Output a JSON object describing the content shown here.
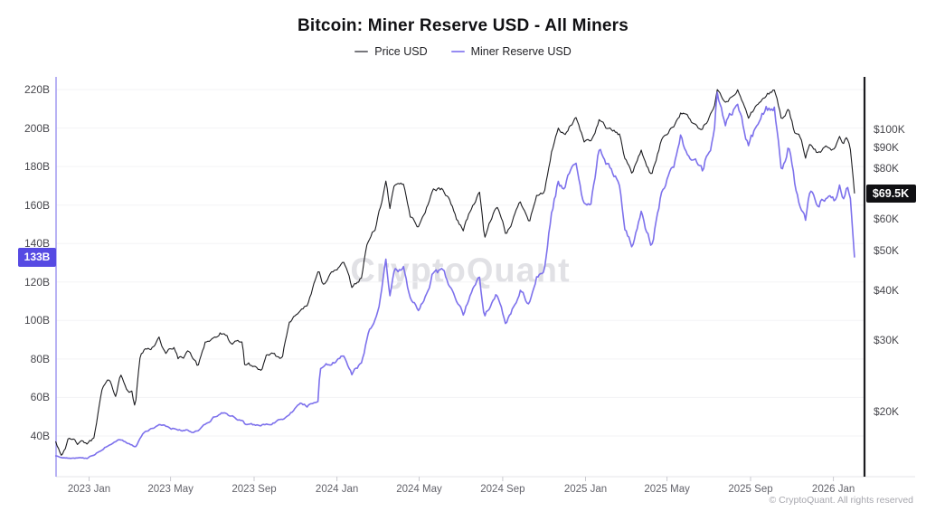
{
  "footer": "© CryptoQuant. All rights reserved",
  "chart_data": {
    "type": "line",
    "title": "Bitcoin: Miner Reserve USD - All Miners",
    "watermark": "CryptoQuant",
    "legend": [
      {
        "label": "Price USD",
        "swatch_color": "#77777c"
      },
      {
        "label": "Miner Reserve USD",
        "swatch_color": "#968bf2"
      }
    ],
    "x_axis": {
      "ticks": [
        [
          "2023-01-01",
          "2023 Jan"
        ],
        [
          "2023-05-01",
          "2023 May"
        ],
        [
          "2023-09-01",
          "2023 Sep"
        ],
        [
          "2024-01-01",
          "2024 Jan"
        ],
        [
          "2024-05-01",
          "2024 May"
        ],
        [
          "2024-09-01",
          "2024 Sep"
        ],
        [
          "2025-01-01",
          "2025 Jan"
        ],
        [
          "2025-05-01",
          "2025 May"
        ],
        [
          "2025-09-01",
          "2025 Sep"
        ],
        [
          "2026-01-01",
          "2026 Jan"
        ]
      ]
    },
    "left_axis": {
      "title": "Miner Reserve USD (billions)",
      "scale": "linear",
      "unit": "B",
      "ticks": [
        [
          40,
          "40B"
        ],
        [
          60,
          "60B"
        ],
        [
          80,
          "80B"
        ],
        [
          100,
          "100B"
        ],
        [
          120,
          "120B"
        ],
        [
          140,
          "140B"
        ],
        [
          160,
          "160B"
        ],
        [
          180,
          "180B"
        ],
        [
          200,
          "200B"
        ],
        [
          220,
          "220B"
        ]
      ],
      "badge": {
        "label": "133B",
        "value": 133,
        "color": "#564ae3"
      },
      "spine_color": "#a79ef2"
    },
    "right_axis": {
      "title": "Price USD",
      "scale": "log",
      "ticks": [
        [
          20000,
          "$20K"
        ],
        [
          30000,
          "$30K"
        ],
        [
          40000,
          "$40K"
        ],
        [
          50000,
          "$50K"
        ],
        [
          60000,
          "$60K"
        ],
        [
          80000,
          "$80K"
        ],
        [
          90000,
          "$90K"
        ],
        [
          100000,
          "$100K"
        ]
      ],
      "badge": {
        "label": "$69.5K",
        "value": 69500,
        "color": "#101013"
      },
      "spine_color": "#1b1b1f"
    },
    "series": [
      {
        "name": "Price USD",
        "axis": "right",
        "color": "#1d1d21",
        "width": 1.1,
        "points": [
          [
            "2022-11-13",
            16900
          ],
          [
            "2022-11-21",
            15800
          ],
          [
            "2022-12-01",
            17100
          ],
          [
            "2022-12-16",
            16600
          ],
          [
            "2022-12-31",
            16550
          ],
          [
            "2023-01-08",
            17000
          ],
          [
            "2023-01-14",
            19900
          ],
          [
            "2023-01-21",
            22800
          ],
          [
            "2023-01-29",
            23700
          ],
          [
            "2023-02-09",
            21800
          ],
          [
            "2023-02-16",
            24600
          ],
          [
            "2023-02-24",
            23200
          ],
          [
            "2023-03-05",
            22400
          ],
          [
            "2023-03-10",
            20200
          ],
          [
            "2023-03-17",
            27400
          ],
          [
            "2023-03-22",
            28300
          ],
          [
            "2023-04-01",
            28400
          ],
          [
            "2023-04-14",
            30700
          ],
          [
            "2023-04-24",
            27600
          ],
          [
            "2023-05-06",
            28900
          ],
          [
            "2023-05-12",
            26800
          ],
          [
            "2023-05-29",
            28100
          ],
          [
            "2023-06-10",
            25700
          ],
          [
            "2023-06-21",
            30000
          ],
          [
            "2023-07-06",
            30600
          ],
          [
            "2023-07-14",
            31300
          ],
          [
            "2023-07-30",
            29300
          ],
          [
            "2023-08-15",
            29200
          ],
          [
            "2023-08-18",
            26100
          ],
          [
            "2023-09-01",
            25800
          ],
          [
            "2023-09-11",
            25200
          ],
          [
            "2023-09-19",
            27200
          ],
          [
            "2023-10-01",
            27000
          ],
          [
            "2023-10-12",
            26800
          ],
          [
            "2023-10-23",
            33100
          ],
          [
            "2023-11-02",
            35400
          ],
          [
            "2023-11-09",
            36700
          ],
          [
            "2023-11-18",
            36500
          ],
          [
            "2023-12-05",
            44000
          ],
          [
            "2023-12-11",
            41300
          ],
          [
            "2023-12-22",
            43900
          ],
          [
            "2024-01-02",
            45000
          ],
          [
            "2024-01-11",
            46600
          ],
          [
            "2024-01-23",
            39900
          ],
          [
            "2024-02-06",
            43100
          ],
          [
            "2024-02-15",
            52300
          ],
          [
            "2024-02-27",
            57000
          ],
          [
            "2024-03-05",
            63800
          ],
          [
            "2024-03-13",
            73100
          ],
          [
            "2024-03-19",
            62800
          ],
          [
            "2024-03-25",
            70900
          ],
          [
            "2024-04-08",
            72100
          ],
          [
            "2024-04-18",
            61300
          ],
          [
            "2024-05-01",
            57500
          ],
          [
            "2024-05-15",
            66300
          ],
          [
            "2024-05-21",
            71400
          ],
          [
            "2024-06-05",
            71100
          ],
          [
            "2024-06-18",
            65100
          ],
          [
            "2024-06-24",
            60300
          ],
          [
            "2024-07-05",
            56600
          ],
          [
            "2024-07-17",
            64100
          ],
          [
            "2024-07-29",
            69600
          ],
          [
            "2024-08-05",
            54000
          ],
          [
            "2024-08-23",
            64100
          ],
          [
            "2024-09-06",
            53900
          ],
          [
            "2024-09-27",
            65800
          ],
          [
            "2024-10-10",
            60300
          ],
          [
            "2024-10-21",
            69000
          ],
          [
            "2024-11-01",
            69500
          ],
          [
            "2024-11-12",
            88000
          ],
          [
            "2024-11-22",
            98900
          ],
          [
            "2024-12-01",
            95900
          ],
          [
            "2024-12-17",
            106100
          ],
          [
            "2024-12-30",
            92600
          ],
          [
            "2025-01-09",
            92500
          ],
          [
            "2025-01-21",
            106100
          ],
          [
            "2025-01-31",
            102100
          ],
          [
            "2025-02-21",
            96100
          ],
          [
            "2025-02-28",
            84300
          ],
          [
            "2025-03-10",
            78500
          ],
          [
            "2025-03-24",
            88000
          ],
          [
            "2025-04-08",
            76300
          ],
          [
            "2025-04-22",
            93400
          ],
          [
            "2025-05-12",
            104100
          ],
          [
            "2025-05-22",
            111700
          ],
          [
            "2025-06-05",
            104700
          ],
          [
            "2025-06-22",
            99000
          ],
          [
            "2025-07-09",
            111300
          ],
          [
            "2025-07-14",
            123100
          ],
          [
            "2025-07-25",
            115000
          ],
          [
            "2025-08-13",
            124400
          ],
          [
            "2025-08-29",
            108000
          ],
          [
            "2025-09-18",
            117500
          ],
          [
            "2025-10-06",
            126200
          ],
          [
            "2025-10-17",
            104600
          ],
          [
            "2025-10-27",
            113000
          ],
          [
            "2025-11-04",
            99500
          ],
          [
            "2025-11-14",
            94000
          ],
          [
            "2025-11-21",
            83000
          ],
          [
            "2025-11-28",
            91000
          ],
          [
            "2025-12-10",
            87000
          ],
          [
            "2025-12-20",
            90000
          ],
          [
            "2026-01-02",
            88000
          ],
          [
            "2026-01-10",
            94000
          ],
          [
            "2026-01-15",
            90500
          ],
          [
            "2026-01-21",
            95500
          ],
          [
            "2026-01-26",
            89000
          ],
          [
            "2026-02-01",
            69500
          ]
        ]
      },
      {
        "name": "Miner Reserve USD",
        "axis": "left",
        "color": "#7d71ec",
        "width": 1.6,
        "points": [
          [
            "2022-11-13",
            29.5
          ],
          [
            "2022-12-01",
            28.5
          ],
          [
            "2022-12-31",
            28.8
          ],
          [
            "2023-01-14",
            31.5
          ],
          [
            "2023-01-29",
            35.5
          ],
          [
            "2023-02-16",
            37.5
          ],
          [
            "2023-03-10",
            34.0
          ],
          [
            "2023-03-22",
            42.0
          ],
          [
            "2023-04-14",
            44.5
          ],
          [
            "2023-05-12",
            43.5
          ],
          [
            "2023-06-10",
            42.5
          ],
          [
            "2023-06-21",
            46.0
          ],
          [
            "2023-07-14",
            52.5
          ],
          [
            "2023-08-15",
            48.0
          ],
          [
            "2023-08-18",
            46.0
          ],
          [
            "2023-09-11",
            45.0
          ],
          [
            "2023-10-01",
            47.5
          ],
          [
            "2023-10-23",
            50.0
          ],
          [
            "2023-11-09",
            56.0
          ],
          [
            "2023-11-18",
            55.5
          ],
          [
            "2023-12-04",
            59.0
          ],
          [
            "2023-12-07",
            76.0
          ],
          [
            "2023-12-22",
            77.5
          ],
          [
            "2024-01-11",
            81.5
          ],
          [
            "2024-01-23",
            72.5
          ],
          [
            "2024-02-06",
            78.0
          ],
          [
            "2024-02-15",
            92.0
          ],
          [
            "2024-02-27",
            101.0
          ],
          [
            "2024-03-05",
            113.0
          ],
          [
            "2024-03-13",
            131.0
          ],
          [
            "2024-03-19",
            114.0
          ],
          [
            "2024-03-25",
            125.5
          ],
          [
            "2024-04-08",
            127.0
          ],
          [
            "2024-04-18",
            110.5
          ],
          [
            "2024-05-01",
            104.0
          ],
          [
            "2024-05-15",
            118.0
          ],
          [
            "2024-05-21",
            127.0
          ],
          [
            "2024-06-05",
            126.0
          ],
          [
            "2024-06-18",
            116.0
          ],
          [
            "2024-06-24",
            108.0
          ],
          [
            "2024-07-05",
            101.5
          ],
          [
            "2024-07-17",
            114.0
          ],
          [
            "2024-07-29",
            123.0
          ],
          [
            "2024-08-05",
            100.0
          ],
          [
            "2024-08-23",
            114.5
          ],
          [
            "2024-09-06",
            98.0
          ],
          [
            "2024-09-27",
            117.0
          ],
          [
            "2024-10-10",
            108.0
          ],
          [
            "2024-10-21",
            123.0
          ],
          [
            "2024-11-01",
            124.0
          ],
          [
            "2024-11-12",
            155.0
          ],
          [
            "2024-11-22",
            172.0
          ],
          [
            "2024-12-01",
            168.0
          ],
          [
            "2024-12-17",
            185.0
          ],
          [
            "2024-12-30",
            162.0
          ],
          [
            "2025-01-09",
            162.0
          ],
          [
            "2025-01-21",
            190.0
          ],
          [
            "2025-01-31",
            182.0
          ],
          [
            "2025-02-21",
            172.0
          ],
          [
            "2025-02-28",
            150.0
          ],
          [
            "2025-03-10",
            139.0
          ],
          [
            "2025-03-24",
            156.0
          ],
          [
            "2025-04-08",
            138.0
          ],
          [
            "2025-04-22",
            165.0
          ],
          [
            "2025-05-12",
            183.0
          ],
          [
            "2025-05-22",
            197.0
          ],
          [
            "2025-06-05",
            185.0
          ],
          [
            "2025-06-22",
            174.0
          ],
          [
            "2025-07-09",
            196.0
          ],
          [
            "2025-07-14",
            219.5
          ],
          [
            "2025-07-25",
            203.0
          ],
          [
            "2025-08-13",
            215.0
          ],
          [
            "2025-08-29",
            190.0
          ],
          [
            "2025-09-18",
            205.0
          ],
          [
            "2025-10-06",
            211.0
          ],
          [
            "2025-10-17",
            180.0
          ],
          [
            "2025-10-27",
            193.0
          ],
          [
            "2025-11-04",
            172.0
          ],
          [
            "2025-11-12",
            158.0
          ],
          [
            "2025-11-21",
            150.0
          ],
          [
            "2025-11-28",
            165.0
          ],
          [
            "2025-12-10",
            160.0
          ],
          [
            "2025-12-20",
            165.0
          ],
          [
            "2026-01-02",
            162.0
          ],
          [
            "2026-01-10",
            170.0
          ],
          [
            "2026-01-15",
            165.0
          ],
          [
            "2026-01-21",
            172.0
          ],
          [
            "2026-01-26",
            163.0
          ],
          [
            "2026-02-01",
            133.0
          ]
        ]
      }
    ]
  }
}
